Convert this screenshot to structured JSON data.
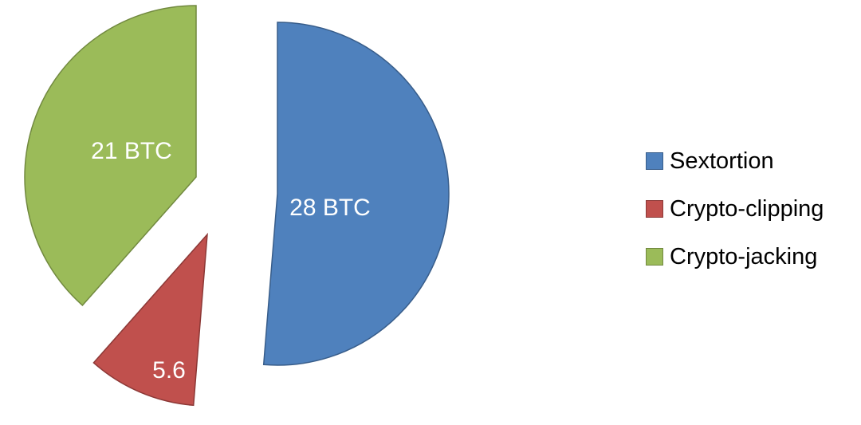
{
  "chart_data": {
    "type": "pie",
    "exploded": true,
    "legend_position": "right",
    "slices": [
      {
        "name": "Sextortion",
        "value": 28,
        "label": "28 BTC",
        "color": "#4f81bd",
        "stroke": "#385d8a"
      },
      {
        "name": "Crypto-clipping",
        "value": 5.6,
        "label": "5.6",
        "color": "#c0504d",
        "stroke": "#8c3836"
      },
      {
        "name": "Crypto-jacking",
        "value": 21,
        "label": "21 BTC",
        "color": "#9bbb59",
        "stroke": "#71893f"
      }
    ]
  }
}
